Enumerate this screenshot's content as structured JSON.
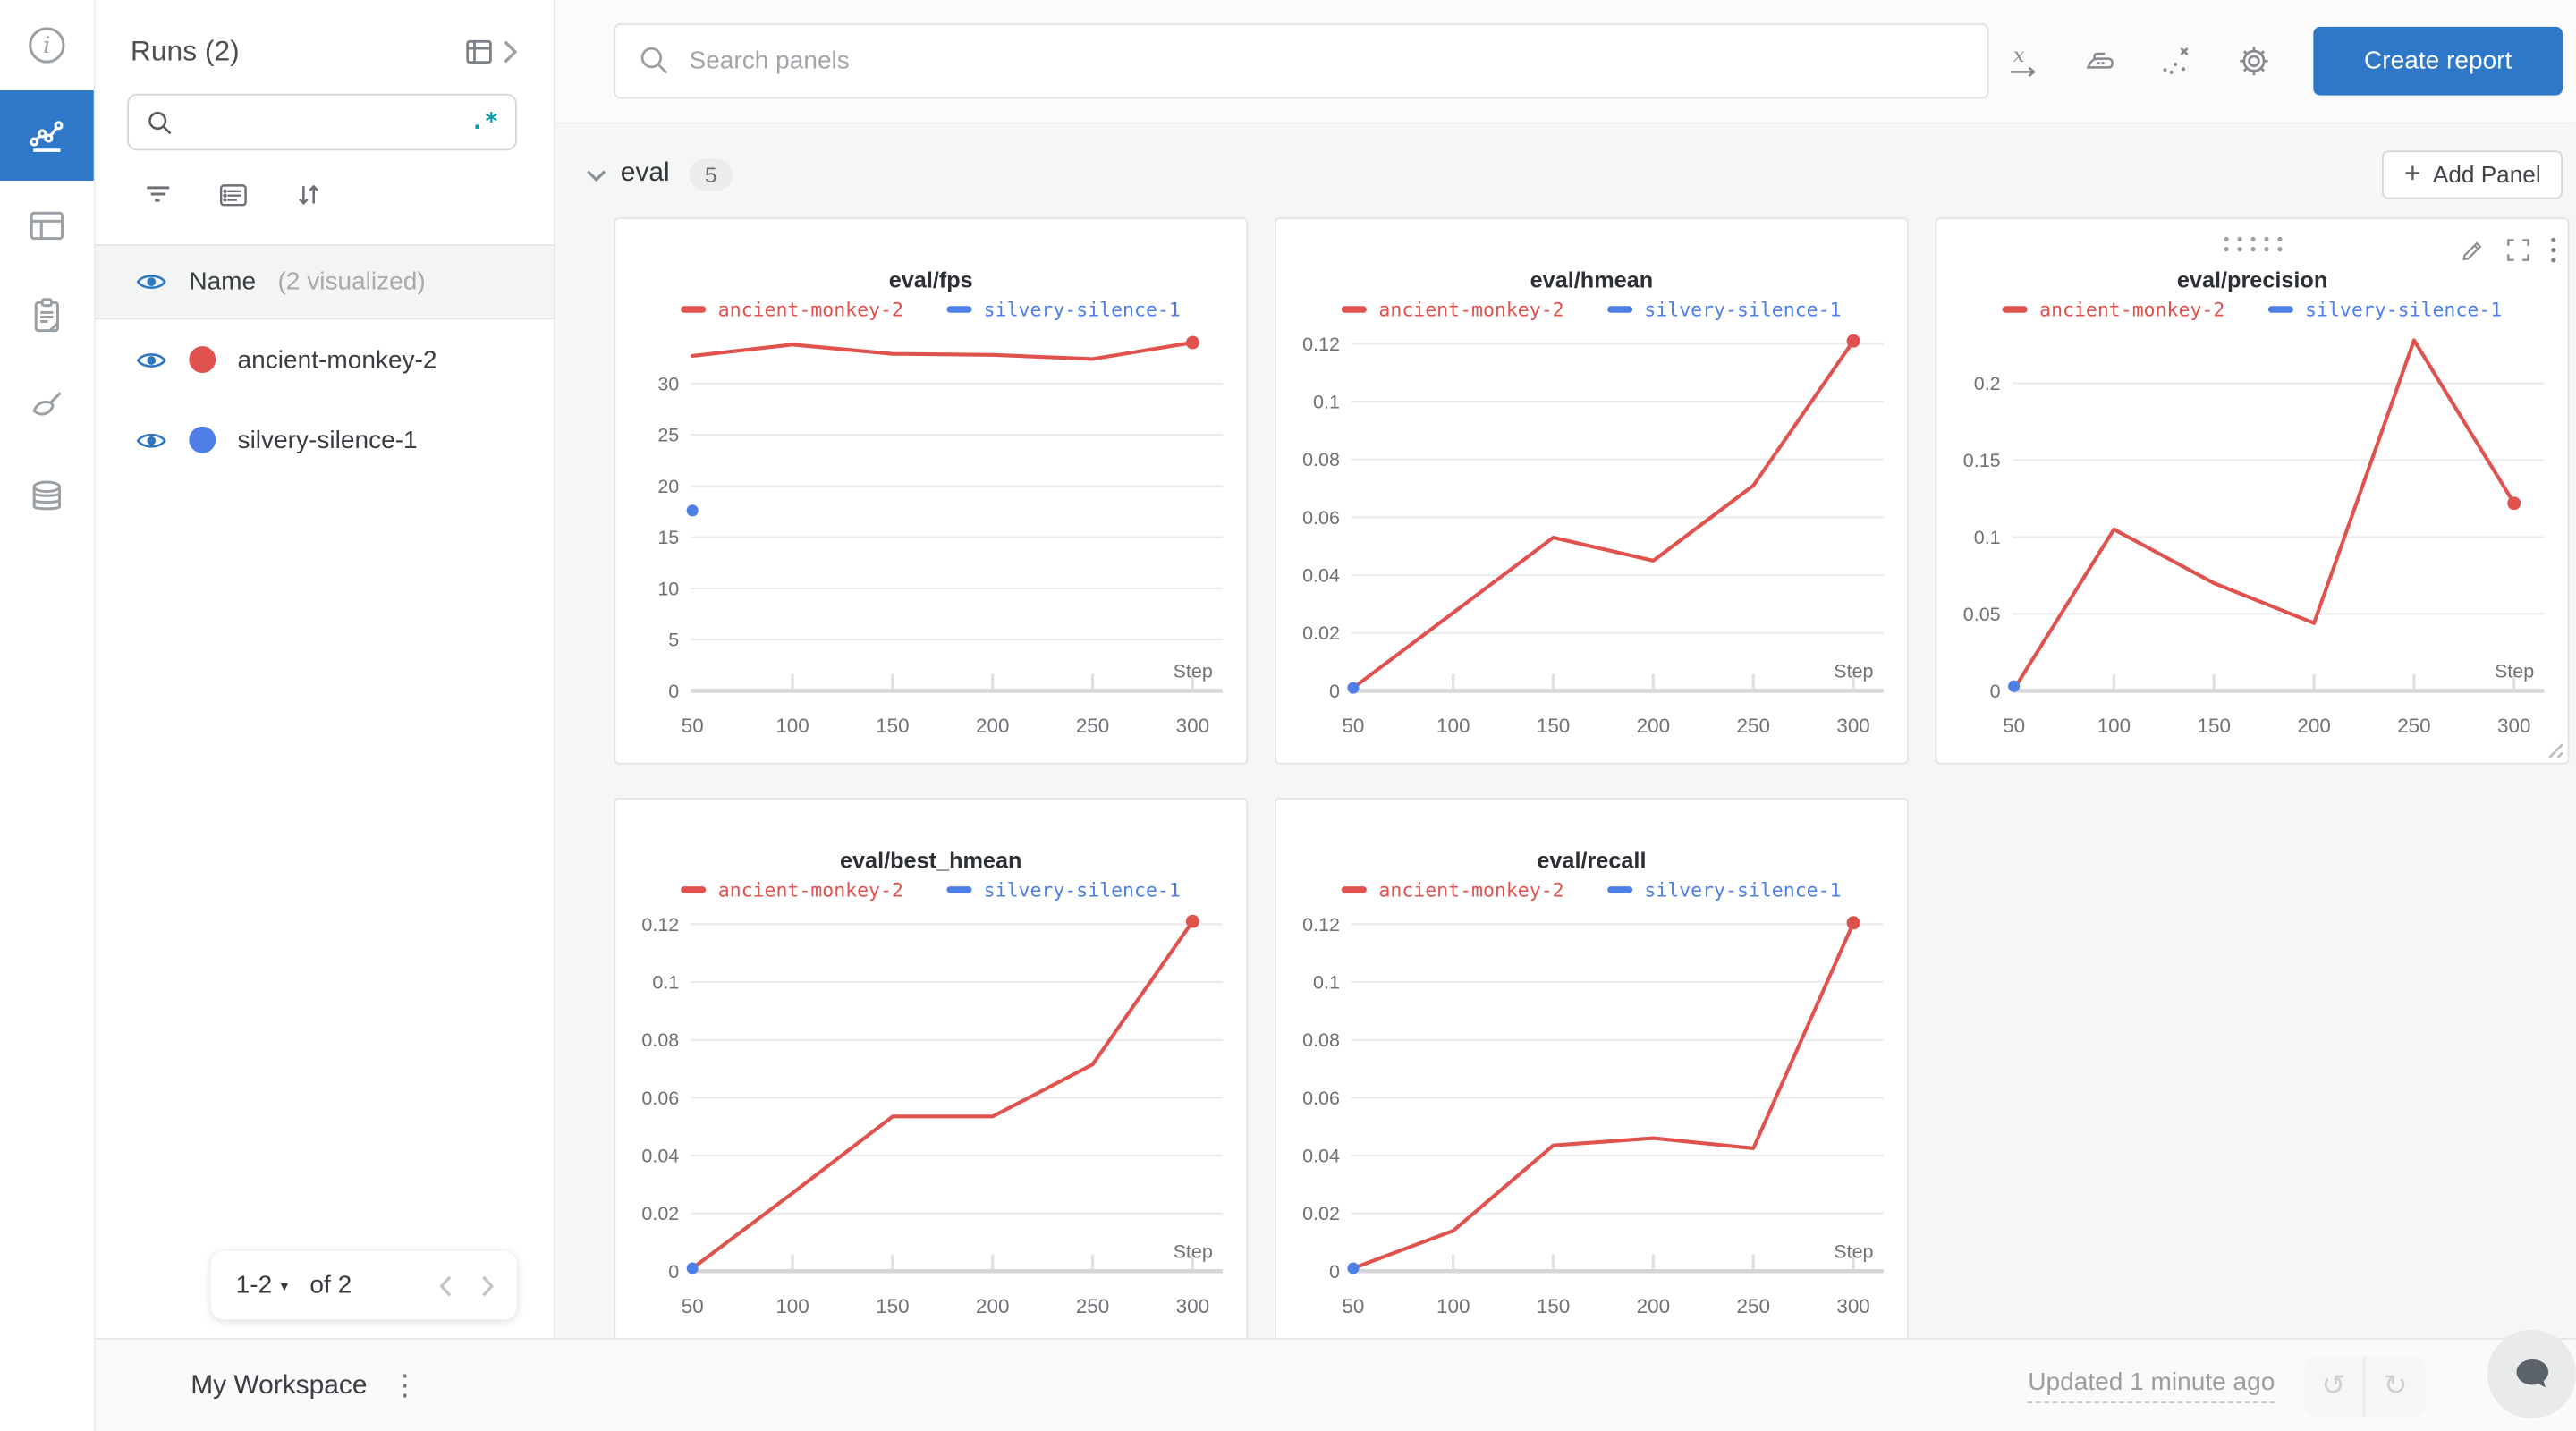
{
  "app": {
    "rail": {
      "items": [
        {
          "name": "info",
          "active": false
        },
        {
          "name": "workspace-charts",
          "active": true
        },
        {
          "name": "runs-table",
          "active": false
        },
        {
          "name": "logs-clipboard",
          "active": false
        },
        {
          "name": "sweeps-brush",
          "active": false
        },
        {
          "name": "artifacts-database",
          "active": false
        }
      ]
    },
    "sidebar": {
      "title": "Runs (2)",
      "search": {
        "value": "",
        "regex_label": ".*"
      },
      "header_row": {
        "label": "Name",
        "sublabel": "(2 visualized)"
      },
      "runs": [
        {
          "name": "ancient-monkey-2",
          "color": "#e0524e",
          "visible": true
        },
        {
          "name": "silvery-silence-1",
          "color": "#4e7fe6",
          "visible": true
        }
      ],
      "pagination": {
        "range": "1-2",
        "of_label": "of 2"
      }
    },
    "topbar": {
      "search_placeholder": "Search panels",
      "create_report_label": "Create report"
    },
    "section": {
      "label": "eval",
      "count": "5",
      "add_panel_label": "Add Panel"
    },
    "bottombar": {
      "workspace_label": "My Workspace",
      "updated_label": "Updated 1 minute ago"
    },
    "glyphs": {
      "kebab": "⋮",
      "dropdown": "▾",
      "undo": "↺",
      "redo": "↻",
      "plus": "+"
    },
    "colors": {
      "accent_blue": "#2e78c7",
      "run_red": "#e0524e",
      "run_blue": "#4e7fe6",
      "teal_regex": "#0e9aa7"
    }
  },
  "chart_data": [
    {
      "type": "line",
      "title": "eval/fps",
      "xlabel": "Step",
      "x_ticks": [
        50,
        100,
        150,
        200,
        250,
        300
      ],
      "xlim": [
        50,
        300
      ],
      "y_ticks": [
        0,
        5,
        10,
        15,
        20,
        25,
        30
      ],
      "y_tick_labels": [
        "0",
        "5",
        "10",
        "15",
        "20",
        "25",
        "30"
      ],
      "ylim": [
        0,
        34.3
      ],
      "grid": "horizontal",
      "legend_position": "top",
      "series": [
        {
          "name": "ancient-monkey-2",
          "color": "#e0524e",
          "x": [
            50,
            100,
            150,
            200,
            250,
            300
          ],
          "y": [
            32.7,
            33.8,
            32.9,
            32.8,
            32.4,
            34.0
          ],
          "end_marker": true
        },
        {
          "name": "silvery-silence-1",
          "color": "#4e7fe6",
          "x": [
            50
          ],
          "y": [
            17.6
          ],
          "point_only": true
        }
      ]
    },
    {
      "type": "line",
      "title": "eval/hmean",
      "xlabel": "Step",
      "x_ticks": [
        50,
        100,
        150,
        200,
        250,
        300
      ],
      "xlim": [
        50,
        300
      ],
      "y_ticks": [
        0,
        0.02,
        0.04,
        0.06,
        0.08,
        0.1,
        0.12
      ],
      "y_tick_labels": [
        "0",
        "0.02",
        "0.04",
        "0.06",
        "0.08",
        "0.1",
        "0.12"
      ],
      "ylim": [
        0,
        0.1215
      ],
      "grid": "horizontal",
      "legend_position": "top",
      "series": [
        {
          "name": "ancient-monkey-2",
          "color": "#e0524e",
          "x": [
            50,
            100,
            150,
            200,
            250,
            300
          ],
          "y": [
            0.001,
            0.027,
            0.053,
            0.045,
            0.071,
            0.121
          ],
          "end_marker": true
        },
        {
          "name": "silvery-silence-1",
          "color": "#4e7fe6",
          "x": [
            50
          ],
          "y": [
            0.001
          ],
          "point_only": true
        }
      ]
    },
    {
      "type": "line",
      "title": "eval/precision",
      "xlabel": "Step",
      "x_ticks": [
        50,
        100,
        150,
        200,
        250,
        300
      ],
      "xlim": [
        50,
        300
      ],
      "y_ticks": [
        0,
        0.05,
        0.1,
        0.15,
        0.2
      ],
      "y_tick_labels": [
        "0",
        "0.05",
        "0.1",
        "0.15",
        "0.2"
      ],
      "ylim": [
        0,
        0.2285
      ],
      "grid": "horizontal",
      "legend_position": "top",
      "hover_tools": true,
      "series": [
        {
          "name": "ancient-monkey-2",
          "color": "#e0524e",
          "x": [
            50,
            100,
            150,
            200,
            250,
            300
          ],
          "y": [
            0.001,
            0.105,
            0.07,
            0.044,
            0.228,
            0.122
          ],
          "end_marker": true
        },
        {
          "name": "silvery-silence-1",
          "color": "#4e7fe6",
          "x": [
            50
          ],
          "y": [
            0.003
          ],
          "point_only": true
        }
      ]
    },
    {
      "type": "line",
      "title": "eval/best_hmean",
      "xlabel": "Step",
      "x_ticks": [
        50,
        100,
        150,
        200,
        250,
        300
      ],
      "xlim": [
        50,
        300
      ],
      "y_ticks": [
        0,
        0.02,
        0.04,
        0.06,
        0.08,
        0.1,
        0.12
      ],
      "y_tick_labels": [
        "0",
        "0.02",
        "0.04",
        "0.06",
        "0.08",
        "0.1",
        "0.12"
      ],
      "ylim": [
        0,
        0.1215
      ],
      "grid": "horizontal",
      "legend_position": "top",
      "series": [
        {
          "name": "ancient-monkey-2",
          "color": "#e0524e",
          "x": [
            50,
            100,
            150,
            200,
            250,
            300
          ],
          "y": [
            0.001,
            0.027,
            0.0535,
            0.0535,
            0.0715,
            0.121
          ],
          "end_marker": true
        },
        {
          "name": "silvery-silence-1",
          "color": "#4e7fe6",
          "x": [
            50
          ],
          "y": [
            0.001
          ],
          "point_only": true
        }
      ]
    },
    {
      "type": "line",
      "title": "eval/recall",
      "xlabel": "Step",
      "x_ticks": [
        50,
        100,
        150,
        200,
        250,
        300
      ],
      "xlim": [
        50,
        300
      ],
      "y_ticks": [
        0,
        0.02,
        0.04,
        0.06,
        0.08,
        0.1,
        0.12
      ],
      "y_tick_labels": [
        "0",
        "0.02",
        "0.04",
        "0.06",
        "0.08",
        "0.1",
        "0.12"
      ],
      "ylim": [
        0,
        0.1215
      ],
      "grid": "horizontal",
      "legend_position": "top",
      "series": [
        {
          "name": "ancient-monkey-2",
          "color": "#e0524e",
          "x": [
            50,
            100,
            150,
            200,
            250,
            300
          ],
          "y": [
            0.001,
            0.014,
            0.0435,
            0.046,
            0.0425,
            0.1205
          ],
          "end_marker": true
        },
        {
          "name": "silvery-silence-1",
          "color": "#4e7fe6",
          "x": [
            50
          ],
          "y": [
            0.001
          ],
          "point_only": true
        }
      ]
    }
  ]
}
